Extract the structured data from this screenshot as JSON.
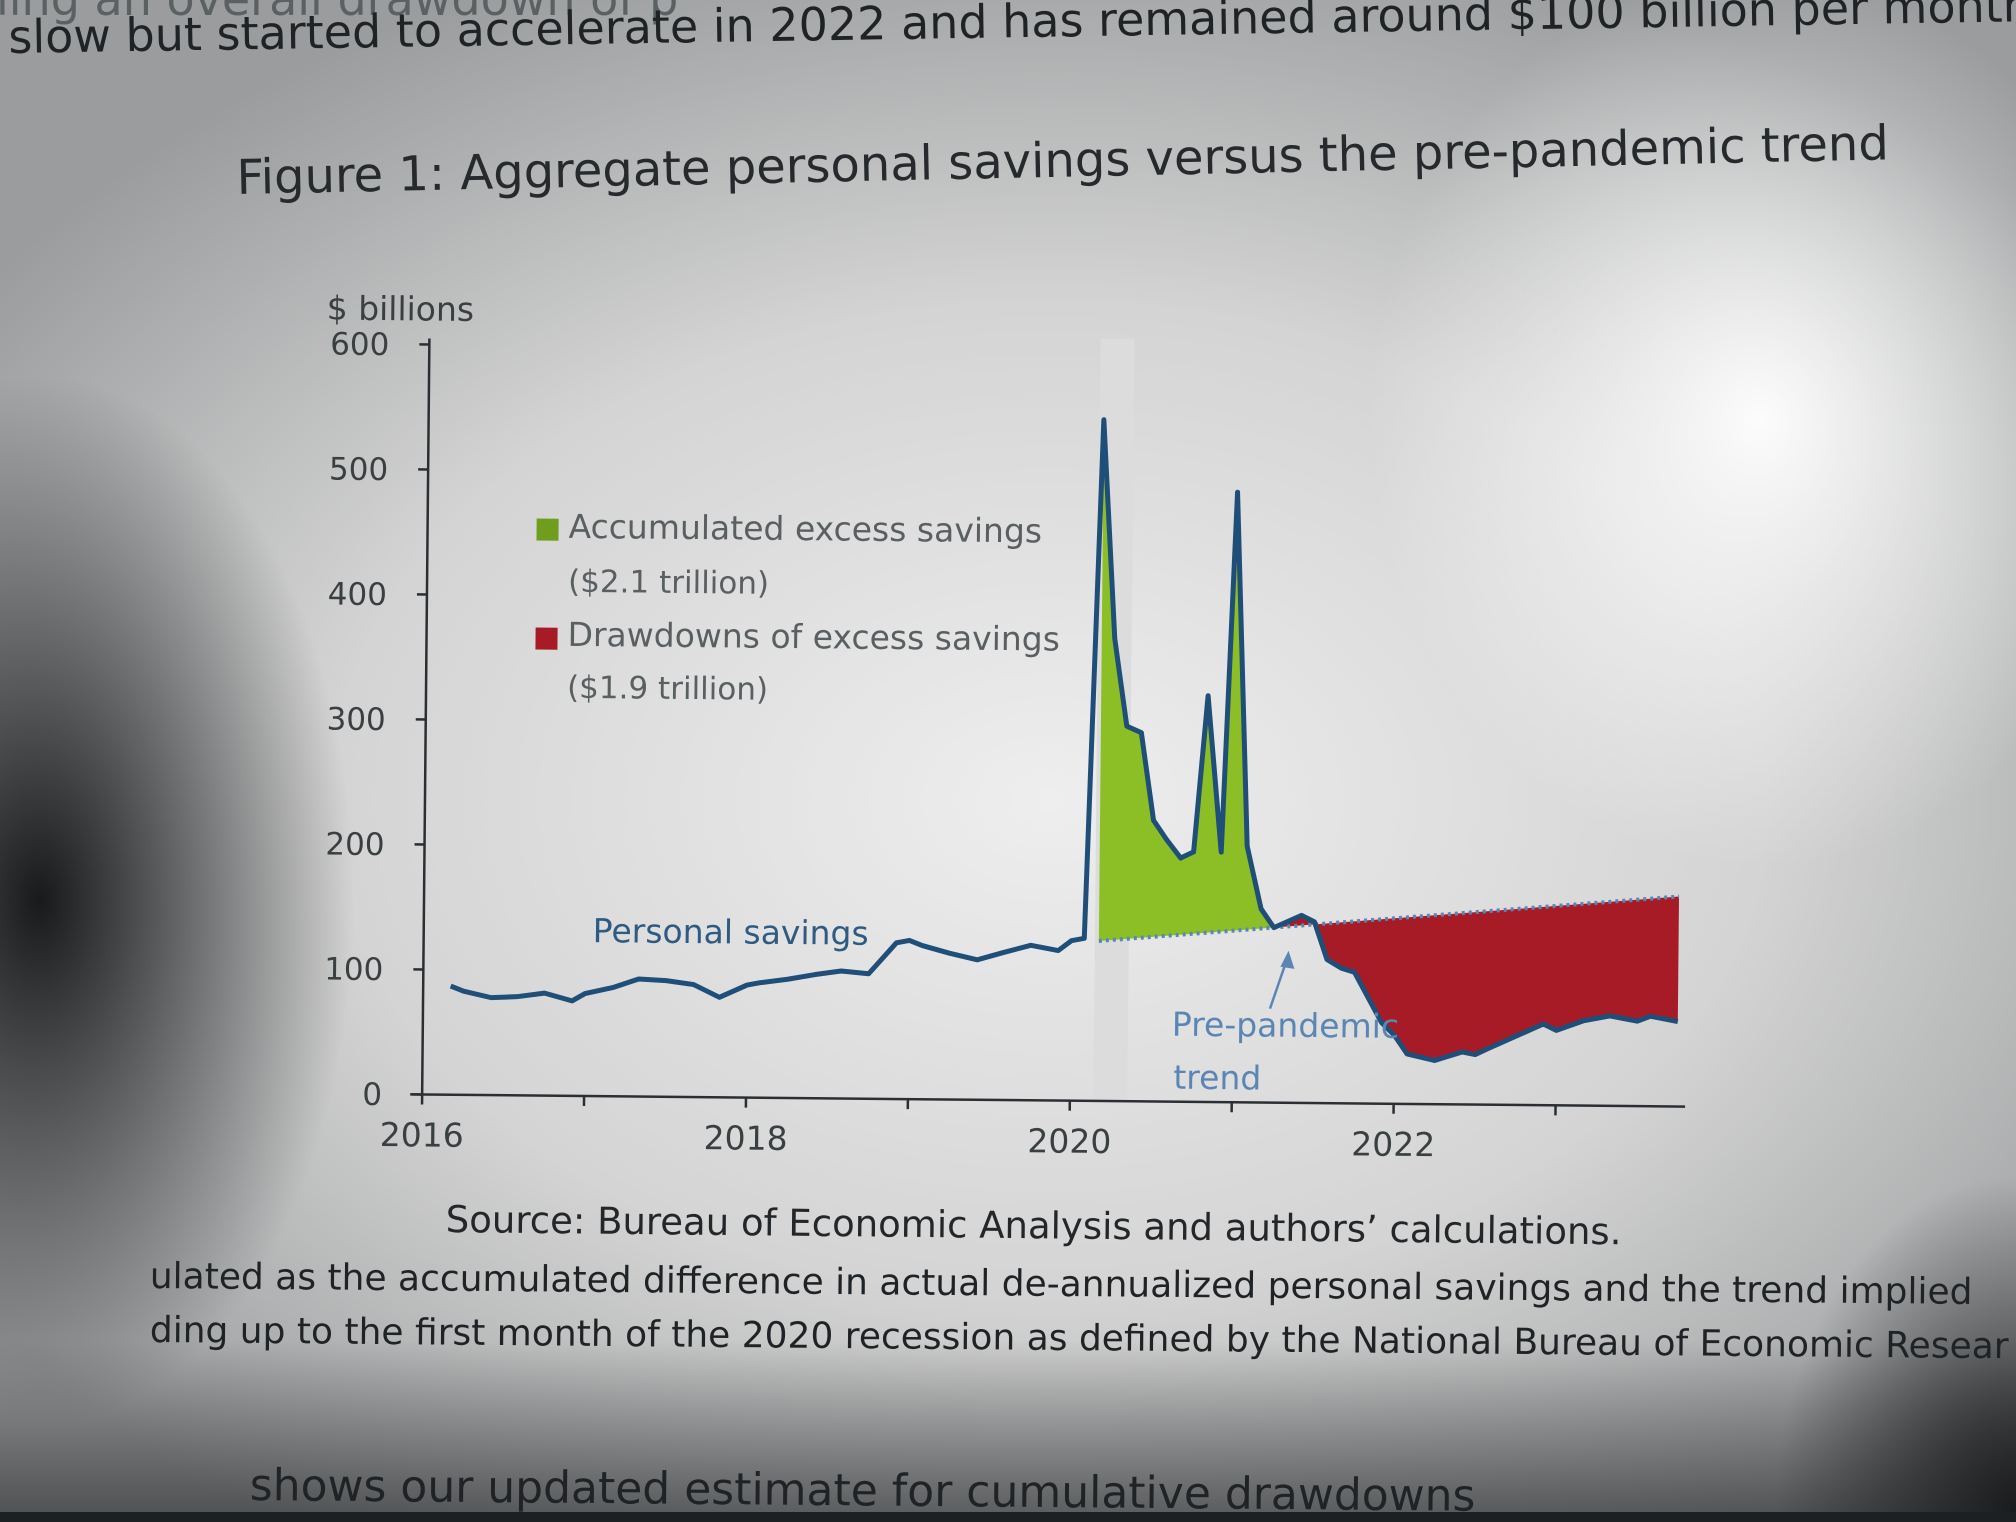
{
  "document": {
    "intro_line_1": "ling an overall drawdown of p",
    "intro_line_2": "slow but started to accelerate in 2022 and has remained around $100 billion per month on a",
    "figure_title": "Figure 1: Aggregate personal savings versus the pre-pandemic trend",
    "source_note": "Source: Bureau of Economic Analysis and authors’ calculations.",
    "footnote_line_1": "ulated as the accumulated difference in actual de-annualized personal savings and the trend implied",
    "footnote_line_2": "ding up to the first month of the 2020 recession as defined by the National Bureau of Economic Resear",
    "body_line": "shows our updated estimate for cumulative drawdowns"
  },
  "chart_data": {
    "type": "area",
    "ylabel": "$ billions",
    "ylim": [
      0,
      600
    ],
    "yticks": [
      0,
      100,
      200,
      300,
      400,
      500,
      600
    ],
    "xlim": [
      2016,
      2023.8
    ],
    "x_tick_labels": [
      "2016",
      "2018",
      "2020",
      "2022"
    ],
    "x_tick_positions": [
      2016,
      2017,
      2018,
      2019,
      2020,
      2021,
      2022,
      2023
    ],
    "recession_band": [
      2020.17,
      2020.33
    ],
    "legend": [
      {
        "label": "Accumulated excess savings",
        "detail": "($2.1 trillion)",
        "color": "#8cbf26"
      },
      {
        "label": "Drawdowns of excess savings",
        "detail": "($1.9 trillion)",
        "color": "#a71b26"
      }
    ],
    "annotations": {
      "personal_savings": "Personal savings",
      "trend_line_1": "Pre-pandemic",
      "trend_line_2": "trend"
    },
    "colors": {
      "savings_line": "#1f4e79",
      "trend_line": "#5b86b4",
      "recession": "#dcdcdc"
    },
    "series": [
      {
        "name": "Personal savings",
        "x": [
          2016.17,
          2016.25,
          2016.42,
          2016.58,
          2016.75,
          2016.92,
          2017.0,
          2017.17,
          2017.33,
          2017.5,
          2017.67,
          2017.83,
          2018.0,
          2018.08,
          2018.25,
          2018.42,
          2018.58,
          2018.75,
          2018.92,
          2019.0,
          2019.08,
          2019.25,
          2019.42,
          2019.58,
          2019.75,
          2019.92,
          2020.0,
          2020.08,
          2020.17,
          2020.25,
          2020.33,
          2020.42,
          2020.5,
          2020.58,
          2020.67,
          2020.75,
          2020.83,
          2020.92,
          2021.0,
          2021.08,
          2021.17,
          2021.25,
          2021.42,
          2021.5,
          2021.58,
          2021.67,
          2021.75,
          2021.92,
          2022.0,
          2022.08,
          2022.25,
          2022.42,
          2022.5,
          2022.58,
          2022.75,
          2022.92,
          2023.0,
          2023.17,
          2023.33,
          2023.5,
          2023.58,
          2023.75
        ],
        "y": [
          87,
          83,
          78,
          79,
          82,
          76,
          82,
          87,
          94,
          93,
          90,
          80,
          90,
          92,
          95,
          99,
          102,
          100,
          125,
          127,
          123,
          117,
          112,
          118,
          124,
          120,
          128,
          130,
          545,
          370,
          300,
          295,
          225,
          210,
          195,
          200,
          325,
          200,
          488,
          205,
          155,
          140,
          150,
          145,
          115,
          108,
          105,
          65,
          55,
          40,
          35,
          42,
          40,
          45,
          55,
          65,
          60,
          68,
          72,
          68,
          72,
          68
        ]
      },
      {
        "name": "Pre-pandemic trend",
        "x": [
          2020.17,
          2023.75
        ],
        "y": [
          128,
          168
        ]
      }
    ]
  }
}
